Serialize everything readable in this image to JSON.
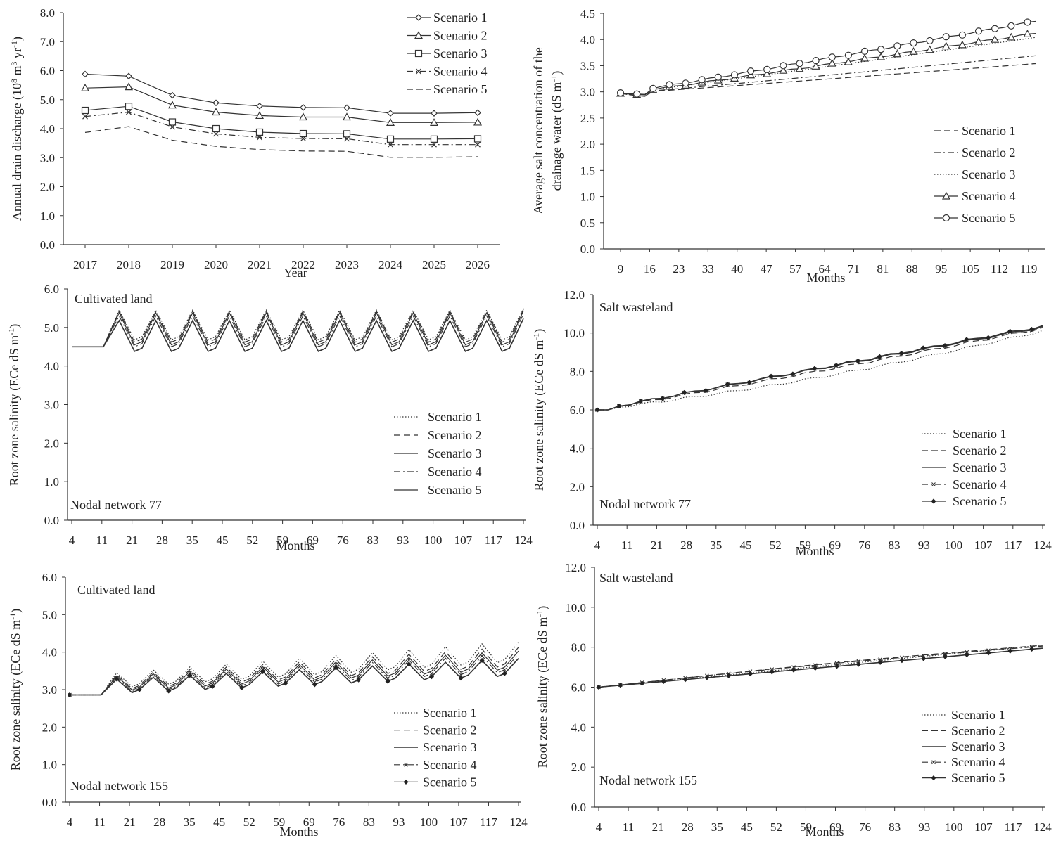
{
  "chart_data": [
    {
      "type": "line",
      "x_label": "Year",
      "y_label": "Annual drain discharge (10",
      "y_label_sup1": "8",
      "y_label_mid": " m",
      "y_label_sup2": "3",
      "y_label_end": " yr",
      "y_label_sup3": "-1",
      "y_label_close": ")",
      "ylim": [
        0,
        8
      ],
      "y_ticks": [
        "0.0",
        "1.0",
        "2.0",
        "3.0",
        "4.0",
        "5.0",
        "6.0",
        "7.0",
        "8.0"
      ],
      "categories": [
        "2017",
        "2018",
        "2019",
        "2020",
        "2021",
        "2022",
        "2023",
        "2024",
        "2025",
        "2026"
      ],
      "series": [
        {
          "name": "Scenario 1",
          "marker": "diamond",
          "dash": "none",
          "values": [
            5.88,
            5.81,
            5.15,
            4.89,
            4.78,
            4.73,
            4.72,
            4.53,
            4.53,
            4.55
          ]
        },
        {
          "name": "Scenario 2",
          "marker": "triangle",
          "dash": "none",
          "values": [
            5.4,
            5.44,
            4.81,
            4.57,
            4.45,
            4.4,
            4.4,
            4.21,
            4.21,
            4.22
          ]
        },
        {
          "name": "Scenario 3",
          "marker": "square",
          "dash": "none",
          "values": [
            4.63,
            4.77,
            4.23,
            4.0,
            3.88,
            3.83,
            3.82,
            3.64,
            3.64,
            3.65
          ]
        },
        {
          "name": "Scenario 4",
          "marker": "x",
          "dash": "dashdot",
          "values": [
            4.42,
            4.57,
            4.06,
            3.82,
            3.7,
            3.66,
            3.65,
            3.45,
            3.45,
            3.45
          ]
        },
        {
          "name": "Scenario 5",
          "marker": "none",
          "dash": "dash",
          "values": [
            3.87,
            4.07,
            3.6,
            3.39,
            3.28,
            3.23,
            3.22,
            3.01,
            3.01,
            3.03
          ]
        }
      ]
    },
    {
      "type": "line",
      "x_label": "Months",
      "y_label_line1": "Average salt concentration of the",
      "y_label_line2": "drainage water (dS m",
      "y_label_sup": "-1",
      "y_label_close": ")",
      "ylim": [
        0,
        4.5
      ],
      "y_ticks": [
        "0.0",
        "0.5",
        "1.0",
        "1.5",
        "2.0",
        "2.5",
        "3.0",
        "3.5",
        "4.0",
        "4.5"
      ],
      "x_ticks": [
        "9",
        "16",
        "23",
        "33",
        "40",
        "47",
        "57",
        "64",
        "71",
        "81",
        "88",
        "95",
        "105",
        "112",
        "119"
      ],
      "series": [
        {
          "name": "Scenario 1",
          "marker": "none",
          "dash": "dash",
          "start": 2.97,
          "end": 3.54
        },
        {
          "name": "Scenario 2",
          "marker": "none",
          "dash": "dashdot",
          "start": 2.97,
          "end": 3.69
        },
        {
          "name": "Scenario 3",
          "marker": "none",
          "dash": "dot",
          "start": 2.97,
          "end": 4.04
        },
        {
          "name": "Scenario 4",
          "marker": "triangle",
          "dash": "none",
          "start": 2.97,
          "end": 4.12
        },
        {
          "name": "Scenario 5",
          "marker": "circle",
          "dash": "none",
          "start": 2.98,
          "end": 4.35
        }
      ]
    },
    {
      "type": "line",
      "x_label": "Months",
      "y_label": "Root zone salinity (ECe dS m",
      "y_label_sup": "-1",
      "y_label_close": ")",
      "annotation_top": "Cultivated land",
      "annotation_bottom": "Nodal network 77",
      "ylim": [
        0,
        6
      ],
      "y_ticks": [
        "0.0",
        "1.0",
        "2.0",
        "3.0",
        "4.0",
        "5.0",
        "6.0"
      ],
      "x_ticks": [
        "4",
        "11",
        "21",
        "28",
        "35",
        "45",
        "52",
        "59",
        "69",
        "76",
        "83",
        "93",
        "100",
        "107",
        "117",
        "124"
      ],
      "series": [
        {
          "name": "Scenario 1",
          "marker": "none",
          "dash": "dot",
          "initial": 4.5,
          "peak": 5.45,
          "trough": 4.68
        },
        {
          "name": "Scenario 2",
          "marker": "none",
          "dash": "dash",
          "initial": 4.5,
          "peak": 5.42,
          "trough": 4.62
        },
        {
          "name": "Scenario 3",
          "marker": "none",
          "dash": "none",
          "initial": 4.5,
          "peak": 5.38,
          "trough": 4.55
        },
        {
          "name": "Scenario 4",
          "marker": "none",
          "dash": "dashdot",
          "initial": 4.5,
          "peak": 5.3,
          "trough": 4.5
        },
        {
          "name": "Scenario 5",
          "marker": "none",
          "dash": "none",
          "initial": 4.5,
          "peak": 5.18,
          "trough": 4.38
        }
      ]
    },
    {
      "type": "line",
      "x_label": "Months",
      "y_label": "Root zone salinity (ECe dS m",
      "y_label_sup": "-1",
      "y_label_close": ")",
      "annotation_top": "Salt wasteland",
      "annotation_bottom": "Nodal network 77",
      "ylim": [
        0,
        12
      ],
      "y_ticks": [
        "0.0",
        "2.0",
        "4.0",
        "6.0",
        "8.0",
        "10.0",
        "12.0"
      ],
      "x_ticks": [
        "4",
        "11",
        "21",
        "28",
        "35",
        "45",
        "52",
        "59",
        "69",
        "76",
        "83",
        "93",
        "100",
        "107",
        "117",
        "124"
      ],
      "series": [
        {
          "name": "Scenario 1",
          "marker": "none",
          "dash": "dot",
          "start": 6.0,
          "end": 10.1
        },
        {
          "name": "Scenario 2",
          "marker": "none",
          "dash": "dash",
          "start": 6.0,
          "end": 10.25
        },
        {
          "name": "Scenario 3",
          "marker": "none",
          "dash": "none",
          "start": 6.0,
          "end": 10.3
        },
        {
          "name": "Scenario 4",
          "marker": "x",
          "dash": "dashdot",
          "start": 6.0,
          "end": 10.3
        },
        {
          "name": "Scenario 5",
          "marker": "diamond",
          "dash": "none",
          "start": 6.0,
          "end": 10.35
        }
      ]
    },
    {
      "type": "line",
      "x_label": "Months",
      "y_label": "Root zone salinity (ECe dS m",
      "y_label_sup": "-1",
      "y_label_close": ")",
      "annotation_top": "Cultivated land",
      "annotation_bottom": "Nodal network 155",
      "ylim": [
        0,
        6
      ],
      "y_ticks": [
        "0.0",
        "1.0",
        "2.0",
        "3.0",
        "4.0",
        "5.0",
        "6.0"
      ],
      "x_ticks": [
        "4",
        "11",
        "21",
        "28",
        "35",
        "45",
        "52",
        "59",
        "69",
        "76",
        "83",
        "93",
        "100",
        "107",
        "117",
        "124"
      ],
      "series": [
        {
          "name": "Scenario 1",
          "marker": "none",
          "dash": "dot",
          "initial": 2.86,
          "peak_start": 3.45,
          "peak_end": 4.22,
          "trough_start": 3.08,
          "trough_end": 3.72
        },
        {
          "name": "Scenario 2",
          "marker": "none",
          "dash": "dash",
          "initial": 2.86,
          "peak_start": 3.4,
          "peak_end": 4.08,
          "trough_start": 3.03,
          "trough_end": 3.6
        },
        {
          "name": "Scenario 3",
          "marker": "none",
          "dash": "none",
          "initial": 2.86,
          "peak_start": 3.36,
          "peak_end": 3.98,
          "trough_start": 2.99,
          "trough_end": 3.52
        },
        {
          "name": "Scenario 4",
          "marker": "x",
          "dash": "dashdot",
          "initial": 2.86,
          "peak_start": 3.32,
          "peak_end": 3.9,
          "trough_start": 2.95,
          "trough_end": 3.45
        },
        {
          "name": "Scenario 5",
          "marker": "diamond",
          "dash": "none",
          "initial": 2.86,
          "peak_start": 3.28,
          "peak_end": 3.78,
          "trough_start": 2.92,
          "trough_end": 3.35
        }
      ]
    },
    {
      "type": "line",
      "x_label": "Months",
      "y_label": "Root zone salinity (ECe dS m",
      "y_label_sup": "-1",
      "y_label_close": ")",
      "annotation_top": "Salt wasteland",
      "annotation_bottom": "Nodal network 155",
      "ylim": [
        0,
        12
      ],
      "y_ticks": [
        "0.0",
        "2.0",
        "4.0",
        "6.0",
        "8.0",
        "10.0",
        "12.0"
      ],
      "x_ticks": [
        "4",
        "11",
        "21",
        "28",
        "35",
        "45",
        "52",
        "59",
        "69",
        "76",
        "83",
        "93",
        "100",
        "107",
        "117",
        "124"
      ],
      "series": [
        {
          "name": "Scenario 1",
          "marker": "none",
          "dash": "dot",
          "start": 6.0,
          "end": 8.1
        },
        {
          "name": "Scenario 2",
          "marker": "none",
          "dash": "dash",
          "start": 6.0,
          "end": 8.1
        },
        {
          "name": "Scenario 3",
          "marker": "none",
          "dash": "none",
          "start": 6.0,
          "end": 7.95
        },
        {
          "name": "Scenario 4",
          "marker": "x",
          "dash": "dashdot",
          "start": 6.0,
          "end": 8.05
        },
        {
          "name": "Scenario 5",
          "marker": "diamond",
          "dash": "none",
          "start": 6.0,
          "end": 7.95
        }
      ]
    }
  ]
}
